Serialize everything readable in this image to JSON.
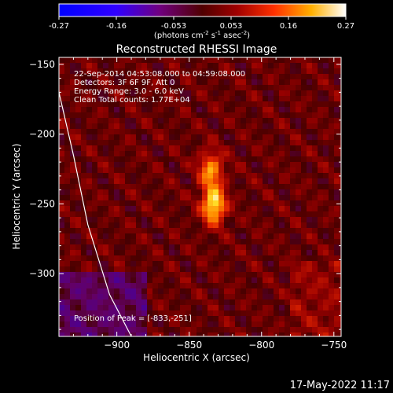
{
  "chart_data": {
    "type": "heatmap",
    "title": "Reconstructed RHESSI Image",
    "xlabel": "Heliocentric X (arcsec)",
    "ylabel": "Heliocentric Y (arcsec)",
    "xlim": [
      -940,
      -745
    ],
    "ylim": [
      -345,
      -145
    ],
    "xticks": [
      -900,
      -850,
      -800,
      -750
    ],
    "yticks": [
      -150,
      -200,
      -250,
      -300
    ],
    "colorbar": {
      "ticks": [
        "-0.27",
        "-0.16",
        "-0.053",
        "0.053",
        "0.16",
        "0.27"
      ],
      "range": [
        -0.27,
        0.27
      ],
      "units_prefix": "(photons cm",
      "units_exp1": "-2",
      "units_mid": " s",
      "units_exp2": "-1",
      "units_mid2": " asec",
      "units_exp3": "-2",
      "units_suffix": ")"
    },
    "info_lines": [
      "22-Sep-2014 04:53:08.000 to 04:59:08.000",
      "Detectors: 3F 6F 9F, Att 0",
      "Energy Range: 3.0 - 6.0 keV",
      "Clean     Total counts: 1.77E+04"
    ],
    "peak_label": "Position of Peak = [-833,-251]",
    "peak_position": [
      -833,
      -251
    ],
    "sources": [
      {
        "x": -833,
        "y": -251,
        "peak": 0.27
      },
      {
        "x": -835,
        "y": -226,
        "peak": 0.2
      }
    ],
    "limb_curve": [
      [
        -940,
        -170
      ],
      [
        -930,
        -215
      ],
      [
        -920,
        -265
      ],
      [
        -905,
        -315
      ],
      [
        -890,
        -345
      ]
    ]
  },
  "timestamp": "17-May-2022 11:17"
}
